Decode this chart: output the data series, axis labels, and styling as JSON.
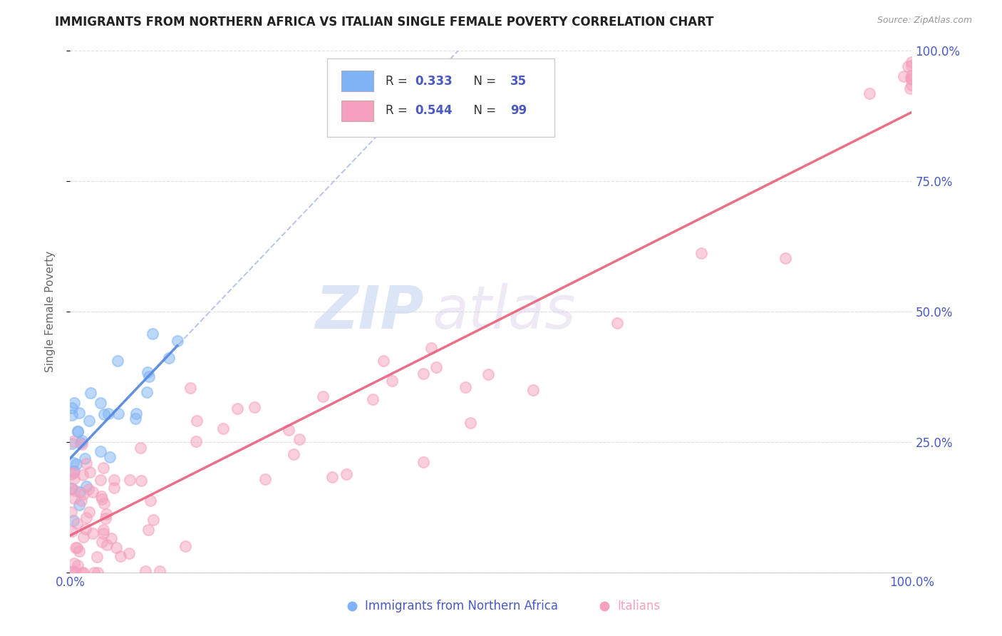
{
  "title": "IMMIGRANTS FROM NORTHERN AFRICA VS ITALIAN SINGLE FEMALE POVERTY CORRELATION CHART",
  "source": "Source: ZipAtlas.com",
  "ylabel": "Single Female Poverty",
  "watermark_zip": "ZIP",
  "watermark_atlas": "atlas",
  "legend_blue_r": "R = 0.333",
  "legend_blue_n": "N = 35",
  "legend_pink_r": "R = 0.544",
  "legend_pink_n": "N = 99",
  "blue_color": "#7eb3f5",
  "pink_color": "#f4a0be",
  "trend_blue_color": "#5588dd",
  "trend_pink_color": "#e8607a",
  "trend_gray_color": "#aabbdd",
  "axis_label_color": "#4a5ac0",
  "title_color": "#222222",
  "background_color": "#ffffff",
  "grid_color": "#dddddd",
  "blue_r": 0.333,
  "pink_r": 0.544,
  "blue_n": 35,
  "pink_n": 99,
  "blue_intercept": 22.0,
  "blue_slope": 1.8,
  "pink_intercept": 10.0,
  "pink_slope": 0.62,
  "gray_intercept": 0.0,
  "gray_slope": 1.0
}
